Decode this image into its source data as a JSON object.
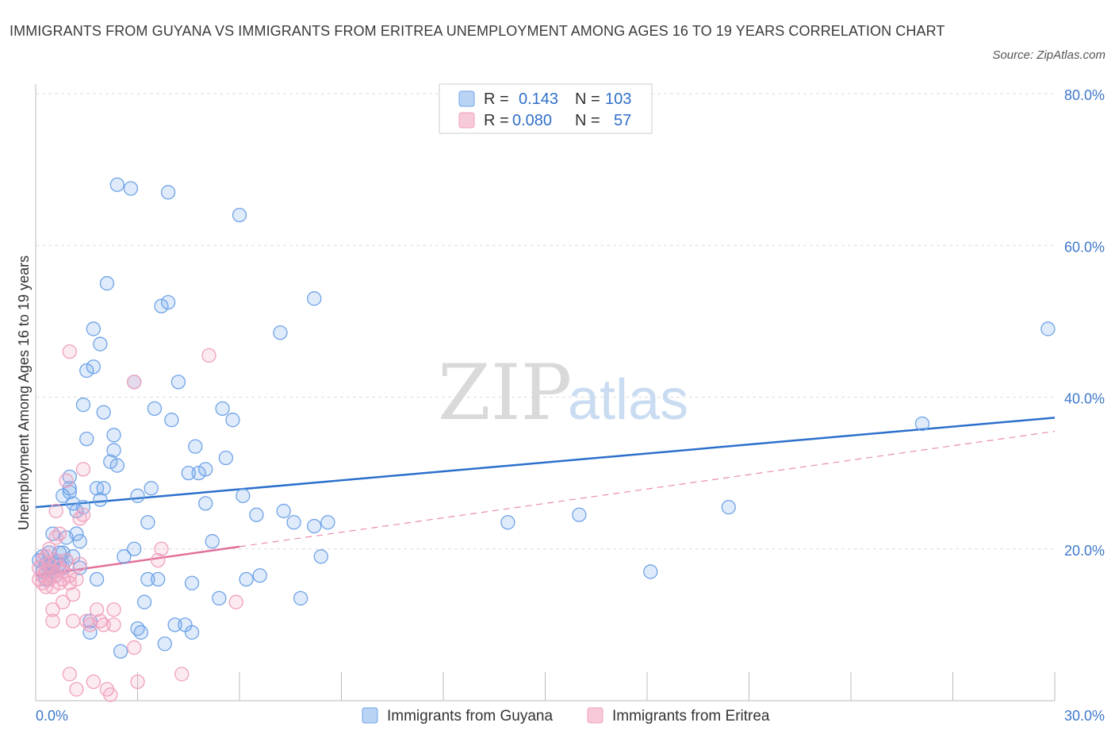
{
  "title": "IMMIGRANTS FROM GUYANA VS IMMIGRANTS FROM ERITREA UNEMPLOYMENT AMONG AGES 16 TO 19 YEARS CORRELATION CHART",
  "source": "Source: ZipAtlas.com",
  "watermark": {
    "zip": "ZIP",
    "atlas": "atlas"
  },
  "colors": {
    "guyana": "#6fa3e8",
    "guyana_line": "#2b6fcb",
    "eritrea": "#f0a1bd",
    "eritrea_line": "#e2709a",
    "grid": "#dddddd",
    "axis_text": "#3f78c9"
  },
  "legend": {
    "rows": [
      {
        "r_label": "R =",
        "r_value": "0.143",
        "n_label": "N =",
        "n_value": "103"
      },
      {
        "r_label": "R =",
        "r_value": "0.080",
        "n_label": "N =",
        "n_value": "57"
      }
    ]
  },
  "chart_data": {
    "type": "scatter",
    "xlabel": "",
    "ylabel": "Unemployment Among Ages 16 to 19 years",
    "xlim": [
      0,
      30
    ],
    "ylim": [
      0,
      80
    ],
    "x_tick_labels": [
      "0.0%",
      "30.0%"
    ],
    "y_tick_labels": [
      "20.0%",
      "40.0%",
      "60.0%",
      "80.0%"
    ],
    "y_ticks": [
      20,
      40,
      60,
      80
    ],
    "legend_position": "bottom",
    "series": [
      {
        "name": "Immigrants from Guyana",
        "R": 0.143,
        "N": 103,
        "trend": {
          "x": [
            0,
            30
          ],
          "y": [
            25.5,
            37.3
          ],
          "style": "solid"
        },
        "points": [
          [
            0.1,
            18.5
          ],
          [
            0.2,
            17.0
          ],
          [
            0.2,
            19.0
          ],
          [
            0.3,
            18.0
          ],
          [
            0.3,
            17.0
          ],
          [
            0.4,
            19.5
          ],
          [
            0.4,
            18.0
          ],
          [
            0.5,
            17.5
          ],
          [
            0.5,
            22.0
          ],
          [
            0.5,
            17.0
          ],
          [
            0.6,
            18.5
          ],
          [
            0.6,
            16.5
          ],
          [
            0.7,
            19.5
          ],
          [
            0.7,
            18.0
          ],
          [
            0.8,
            17.5
          ],
          [
            0.8,
            27.0
          ],
          [
            0.8,
            19.5
          ],
          [
            0.9,
            21.5
          ],
          [
            0.9,
            18.5
          ],
          [
            1.0,
            29.5
          ],
          [
            1.0,
            27.5
          ],
          [
            1.0,
            28.0
          ],
          [
            1.1,
            26.0
          ],
          [
            1.1,
            19.0
          ],
          [
            1.2,
            22.0
          ],
          [
            1.2,
            25.0
          ],
          [
            1.3,
            21.0
          ],
          [
            1.3,
            17.5
          ],
          [
            1.4,
            25.5
          ],
          [
            1.5,
            43.5
          ],
          [
            1.4,
            39.0
          ],
          [
            1.5,
            34.5
          ],
          [
            1.6,
            9.0
          ],
          [
            1.6,
            10.5
          ],
          [
            1.7,
            44.0
          ],
          [
            1.7,
            49.0
          ],
          [
            1.8,
            28.0
          ],
          [
            1.8,
            16.0
          ],
          [
            1.9,
            26.5
          ],
          [
            1.9,
            47.0
          ],
          [
            2.0,
            28.0
          ],
          [
            2.0,
            38.0
          ],
          [
            2.1,
            55.0
          ],
          [
            2.2,
            31.5
          ],
          [
            2.3,
            35.0
          ],
          [
            2.3,
            33.0
          ],
          [
            2.4,
            31.0
          ],
          [
            2.4,
            68.0
          ],
          [
            2.5,
            6.5
          ],
          [
            2.6,
            19.0
          ],
          [
            2.8,
            67.5
          ],
          [
            2.9,
            42.0
          ],
          [
            2.9,
            20.0
          ],
          [
            3.0,
            27.0
          ],
          [
            3.0,
            9.5
          ],
          [
            3.1,
            9.0
          ],
          [
            3.2,
            13.0
          ],
          [
            3.3,
            16.0
          ],
          [
            3.3,
            23.5
          ],
          [
            3.4,
            28.0
          ],
          [
            3.5,
            38.5
          ],
          [
            3.6,
            16.0
          ],
          [
            3.7,
            52.0
          ],
          [
            3.8,
            7.5
          ],
          [
            3.9,
            67.0
          ],
          [
            3.9,
            52.5
          ],
          [
            4.0,
            37.0
          ],
          [
            4.1,
            10.0
          ],
          [
            4.2,
            42.0
          ],
          [
            4.4,
            10.0
          ],
          [
            4.5,
            30.0
          ],
          [
            4.6,
            9.0
          ],
          [
            4.6,
            15.5
          ],
          [
            4.7,
            33.5
          ],
          [
            4.8,
            30.0
          ],
          [
            5.0,
            26.0
          ],
          [
            5.0,
            30.5
          ],
          [
            5.2,
            21.0
          ],
          [
            5.4,
            13.5
          ],
          [
            5.5,
            38.5
          ],
          [
            5.6,
            32.0
          ],
          [
            5.8,
            37.0
          ],
          [
            6.0,
            64.0
          ],
          [
            6.1,
            27.0
          ],
          [
            6.2,
            16.0
          ],
          [
            6.5,
            24.5
          ],
          [
            6.6,
            16.5
          ],
          [
            7.2,
            48.5
          ],
          [
            7.3,
            25.0
          ],
          [
            7.6,
            23.5
          ],
          [
            7.8,
            13.5
          ],
          [
            8.2,
            53.0
          ],
          [
            8.2,
            23.0
          ],
          [
            8.4,
            19.0
          ],
          [
            8.6,
            23.5
          ],
          [
            13.9,
            23.5
          ],
          [
            16.0,
            24.5
          ],
          [
            18.1,
            17.0
          ],
          [
            20.4,
            25.5
          ],
          [
            26.1,
            36.5
          ],
          [
            29.8,
            49.0
          ],
          [
            0.3,
            16.0
          ],
          [
            0.5,
            18.0
          ]
        ]
      },
      {
        "name": "Immigrants from Eritrea",
        "R": 0.08,
        "N": 57,
        "trend": {
          "x": [
            0,
            6.0
          ],
          "y": [
            16.5,
            20.3
          ],
          "style": "solid",
          "extension": {
            "x": [
              6.0,
              30
            ],
            "y": [
              20.3,
              35.5
            ],
            "style": "dashed"
          }
        },
        "points": [
          [
            0.1,
            16.0
          ],
          [
            0.1,
            17.5
          ],
          [
            0.2,
            15.5
          ],
          [
            0.2,
            18.5
          ],
          [
            0.2,
            16.5
          ],
          [
            0.3,
            17.0
          ],
          [
            0.3,
            15.0
          ],
          [
            0.3,
            19.0
          ],
          [
            0.4,
            16.0
          ],
          [
            0.4,
            18.0
          ],
          [
            0.4,
            20.0
          ],
          [
            0.5,
            15.0
          ],
          [
            0.5,
            17.0
          ],
          [
            0.5,
            12.0
          ],
          [
            0.5,
            10.5
          ],
          [
            0.6,
            18.5
          ],
          [
            0.6,
            16.5
          ],
          [
            0.6,
            25.0
          ],
          [
            0.6,
            21.5
          ],
          [
            0.7,
            15.5
          ],
          [
            0.7,
            17.5
          ],
          [
            0.7,
            22.0
          ],
          [
            0.8,
            13.0
          ],
          [
            0.8,
            17.0
          ],
          [
            0.8,
            16.0
          ],
          [
            0.9,
            29.0
          ],
          [
            0.9,
            18.5
          ],
          [
            1.0,
            16.5
          ],
          [
            1.0,
            3.5
          ],
          [
            1.0,
            46.0
          ],
          [
            1.0,
            15.5
          ],
          [
            1.1,
            10.5
          ],
          [
            1.1,
            14.0
          ],
          [
            1.2,
            16.0
          ],
          [
            1.2,
            1.5
          ],
          [
            1.3,
            24.0
          ],
          [
            1.3,
            18.0
          ],
          [
            1.4,
            30.5
          ],
          [
            1.4,
            24.5
          ],
          [
            1.5,
            10.5
          ],
          [
            1.6,
            10.0
          ],
          [
            1.7,
            2.5
          ],
          [
            1.8,
            12.0
          ],
          [
            1.9,
            10.5
          ],
          [
            2.0,
            10.0
          ],
          [
            2.1,
            1.5
          ],
          [
            2.2,
            0.8
          ],
          [
            2.3,
            12.0
          ],
          [
            2.3,
            10.0
          ],
          [
            2.9,
            42.0
          ],
          [
            2.9,
            7.0
          ],
          [
            3.0,
            2.5
          ],
          [
            3.6,
            18.5
          ],
          [
            3.7,
            20.0
          ],
          [
            4.3,
            3.5
          ],
          [
            5.1,
            45.5
          ],
          [
            5.9,
            13.0
          ]
        ]
      }
    ]
  }
}
